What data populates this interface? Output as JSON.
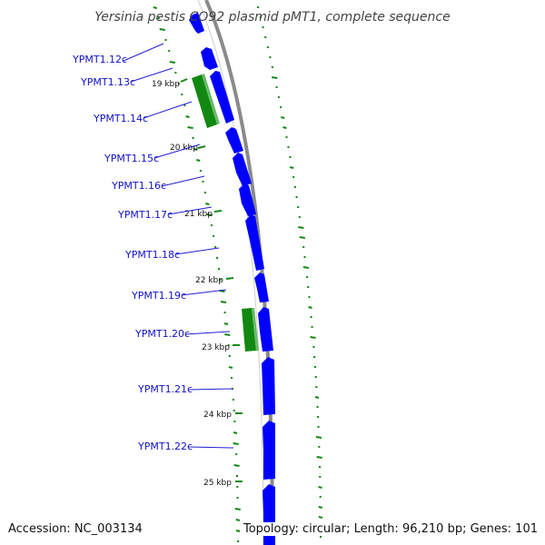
{
  "title": "Yersinia pestis CO92 plasmid pMT1, complete sequence",
  "footer": {
    "accession": "Accession: NC_003134",
    "topology": "Topology: circular; Length: 96,210 bp; Genes: 101"
  },
  "colors": {
    "cds_strand": "#0000ff",
    "trna_gc": "#118811",
    "backbone": "#8a8a8a",
    "label_text": "#1010c8",
    "leader_line": "#2020d0"
  },
  "gene_labels": [
    "YPMT1.12c",
    "YPMT1.13c",
    "YPMT1.14c",
    "YPMT1.15c",
    "YPMT1.16c",
    "YPMT1.17c",
    "YPMT1.18c",
    "YPMT1.19c",
    "YPMT1.20c",
    "YPMT1.21c",
    "YPMT1.22c"
  ],
  "tick_labels": [
    "19 kbp",
    "20 kbp",
    "21 kbp",
    "22 kbp",
    "23 kbp",
    "24 kbp",
    "25 kbp"
  ]
}
